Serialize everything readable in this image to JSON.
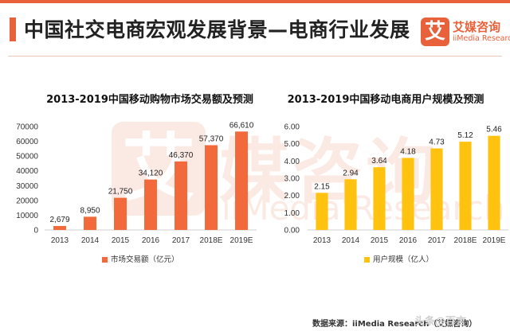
{
  "header": {
    "title": "中国社交电商宏观发展背景—电商行业发展",
    "logo_mark": "艾",
    "logo_cn": "艾媒咨询",
    "logo_en": "iiMedia Research"
  },
  "watermark": {
    "mark": "艾",
    "cn": "媒咨询",
    "en": "iiMedia Research"
  },
  "colors": {
    "accent": "#e8613a",
    "bar_left": "#f26a3b",
    "bar_right": "#ffc20e"
  },
  "chart_data": [
    {
      "type": "bar",
      "title": "2013-2019中国移动购物市场交易额及预测",
      "categories": [
        "2013",
        "2014",
        "2015",
        "2016",
        "2017",
        "2018E",
        "2019E"
      ],
      "series": [
        {
          "name": "市场交易额（亿元）",
          "values": [
            2679,
            8950,
            21750,
            34120,
            46370,
            57370,
            66610
          ]
        }
      ],
      "value_labels": [
        "2,679",
        "8,950",
        "21,750",
        "34,120",
        "46,370",
        "57,370",
        "66,610"
      ],
      "yticks": [
        0,
        10000,
        20000,
        30000,
        40000,
        50000,
        60000,
        70000
      ],
      "ytick_labels": [
        "0",
        "10000",
        "20000",
        "30000",
        "40000",
        "50000",
        "60000",
        "70000"
      ],
      "ylim": [
        0,
        70000
      ],
      "legend": "bottom",
      "grid": false
    },
    {
      "type": "bar",
      "title": "2013-2019中国移动电商用户规模及预测",
      "categories": [
        "2013",
        "2014",
        "2015",
        "2016",
        "2017",
        "2018E",
        "2019E"
      ],
      "series": [
        {
          "name": "用户规模（亿人）",
          "values": [
            2.15,
            2.94,
            3.64,
            4.18,
            4.73,
            5.12,
            5.46
          ]
        }
      ],
      "value_labels": [
        "2.15",
        "2.94",
        "3.64",
        "4.18",
        "4.73",
        "5.12",
        "5.46"
      ],
      "yticks": [
        0,
        1,
        2,
        3,
        4,
        5,
        6
      ],
      "ytick_labels": [
        "0.00",
        "1.00",
        "2.00",
        "3.00",
        "4.00",
        "5.00",
        "6.00"
      ],
      "ylim": [
        0,
        6
      ],
      "legend": "bottom",
      "grid": false
    }
  ],
  "footer": {
    "source": "数据来源：iiMedia Research（艾媒咨询）",
    "watermark": "头条@百言"
  }
}
